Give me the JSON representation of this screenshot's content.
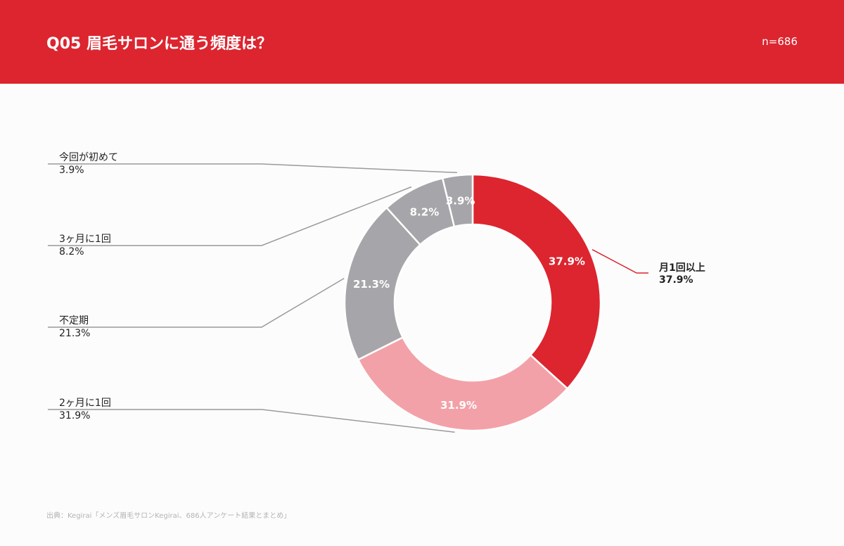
{
  "header": {
    "title": "Q05  眉毛サロンに通う頻度は？",
    "sample_size": "n=686"
  },
  "source": "出典：Kegirai「メンズ眉毛サロンKegirai、686人アンケート結果とまとめ」",
  "colors": {
    "brand_red": "#dc252f",
    "pink": "#f3a1a8",
    "gray": "#a6a5a9",
    "white": "#ffffff"
  },
  "chart_data": {
    "type": "pie",
    "donut": true,
    "start": "12 o'clock, clockwise",
    "title": "Q05  眉毛サロンに通う頻度は？",
    "sample_size": "n=686",
    "slices": [
      {
        "label": "月1回以上",
        "value": 37.9,
        "value_label": "37.9%",
        "color": "#dc252f",
        "side": "right"
      },
      {
        "label": "2ヶ月に1回",
        "value": 31.9,
        "value_label": "31.9%",
        "color": "#f3a1a8",
        "side": "left"
      },
      {
        "label": "不定期",
        "value": 21.3,
        "value_label": "21.3%",
        "color": "#a6a5a9",
        "side": "left"
      },
      {
        "label": "3ヶ月に1回",
        "value": 8.2,
        "value_label": "8.2%",
        "color": "#a6a5a9",
        "side": "left"
      },
      {
        "label": "今回が初めて",
        "value": 3.9,
        "value_label": "3.9%",
        "color": "#a6a5a9",
        "side": "left"
      }
    ]
  }
}
